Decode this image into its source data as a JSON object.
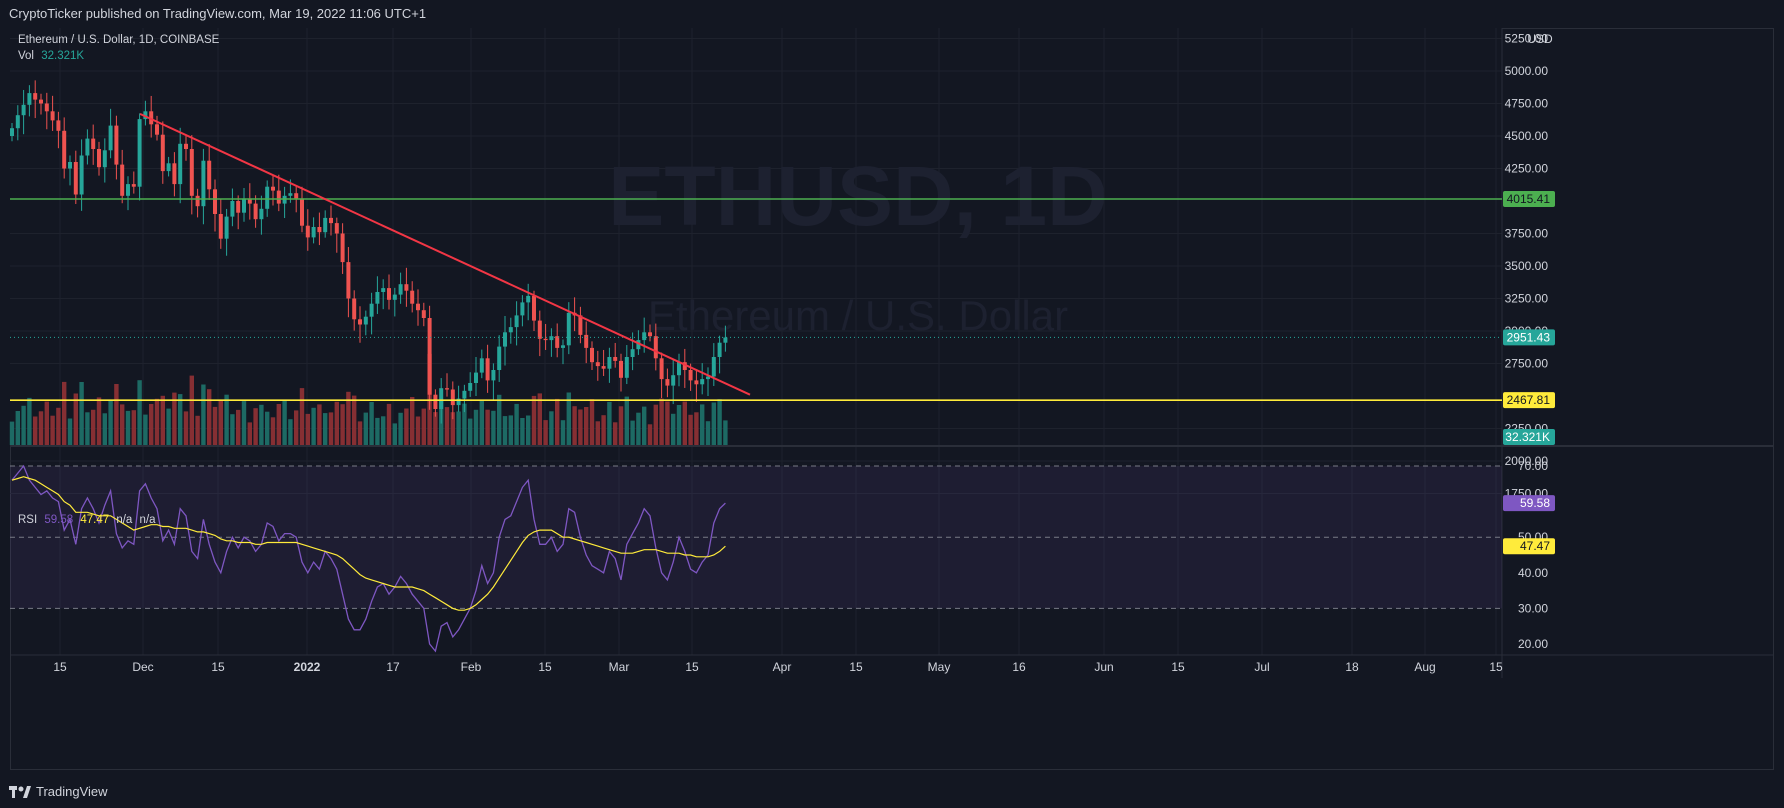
{
  "header": {
    "publish_line": "CryptoTicker published on TradingView.com, Mar 19, 2022 11:06 UTC+1"
  },
  "footer": {
    "logo_text": "TradingView"
  },
  "legend": {
    "symbol_line": "Ethereum / U.S. Dollar, 1D, COINBASE",
    "vol_label": "Vol",
    "vol_value": "32.321K",
    "rsi_label": "RSI",
    "rsi_value": "59.58",
    "rsi_ma_value": "47.47",
    "na1": "n/a",
    "na2": "n/a"
  },
  "watermark": {
    "ticker": "ETHUSD, 1D",
    "name": "Ethereum / U.S. Dollar"
  },
  "currency": "USD",
  "colors": {
    "up": "#26a69a",
    "down": "#ef5350",
    "support_line": "#ffeb3b",
    "resistance_line": "#4caf50",
    "trend_line": "#f23645",
    "rsi_line": "#7e57c2",
    "rsi_ma": "#ffeb3b",
    "background": "#131722"
  },
  "chart_data": [
    {
      "type": "candlestick",
      "title": "Ethereum / U.S. Dollar, 1D, COINBASE",
      "y_axis_ticks": [
        5250,
        5000,
        4750,
        4500,
        4250,
        3750,
        3500,
        3250,
        3000,
        2750,
        2250,
        2000,
        1750
      ],
      "x_axis_ticks": [
        "15",
        "Dec",
        "15",
        "2022",
        "17",
        "Feb",
        "15",
        "Mar",
        "15",
        "Apr",
        "15",
        "May",
        "16",
        "Jun",
        "15",
        "Jul",
        "18",
        "Aug",
        "15"
      ],
      "horizontal_lines": [
        {
          "label": "4015.41",
          "value": 4015.41,
          "color": "#4caf50"
        },
        {
          "label": "2467.81",
          "value": 2467.81,
          "color": "#ffeb3b"
        }
      ],
      "trend_line": {
        "from": {
          "date": "2021-12-01",
          "value": 4670
        },
        "to": {
          "date": "2022-03-28",
          "value": 2510
        }
      },
      "current_price": "2951.43",
      "current_volume": "32.321K",
      "close_series": [
        4560,
        4660,
        4740,
        4830,
        4780,
        4750,
        4690,
        4620,
        4540,
        4250,
        4300,
        4050,
        4350,
        4480,
        4400,
        4260,
        4390,
        4580,
        4280,
        4040,
        4130,
        4110,
        4630,
        4690,
        4590,
        4510,
        4230,
        4290,
        4130,
        4440,
        4400,
        4040,
        3960,
        4310,
        4090,
        3900,
        3710,
        3880,
        4000,
        3910,
        4020,
        3980,
        3860,
        3940,
        4110,
        4080,
        3980,
        4040,
        4060,
        4020,
        3810,
        3720,
        3800,
        3760,
        3870,
        3830,
        3750,
        3530,
        3250,
        3090,
        3050,
        3110,
        3210,
        3300,
        3330,
        3240,
        3280,
        3360,
        3310,
        3210,
        3160,
        3100,
        2510,
        2400,
        2560,
        2550,
        2430,
        2480,
        2540,
        2600,
        2680,
        2790,
        2620,
        2700,
        2880,
        2990,
        3030,
        3120,
        3220,
        3270,
        3080,
        2940,
        2930,
        2960,
        2870,
        2890,
        3140,
        3120,
        2970,
        2870,
        2760,
        2730,
        2710,
        2800,
        2770,
        2640,
        2800,
        2860,
        2930,
        2990,
        2960,
        2790,
        2630,
        2580,
        2660,
        2760,
        2700,
        2620,
        2590,
        2630,
        2650,
        2800,
        2910,
        2950
      ]
    },
    {
      "type": "bar",
      "title": "Vol",
      "series": [
        {
          "name": "Vol",
          "last_value": "32.321K"
        }
      ]
    },
    {
      "type": "line",
      "title": "RSI",
      "y_axis_ticks": [
        70,
        50,
        40,
        30,
        20
      ],
      "bands": [
        30,
        70
      ],
      "series": [
        {
          "name": "RSI",
          "last_value": 59.58,
          "values": [
            66,
            68,
            70,
            66,
            64,
            62,
            63,
            61,
            60,
            52,
            55,
            48,
            58,
            61,
            58,
            54,
            59,
            63,
            51,
            47,
            49,
            48,
            63,
            65,
            61,
            58,
            49,
            52,
            48,
            58,
            56,
            46,
            44,
            55,
            48,
            43,
            40,
            46,
            50,
            47,
            50,
            49,
            46,
            48,
            54,
            53,
            49,
            51,
            51,
            50,
            43,
            40,
            43,
            41,
            46,
            44,
            41,
            34,
            27,
            24,
            24,
            27,
            32,
            36,
            37,
            34,
            36,
            39,
            37,
            34,
            32,
            30,
            20,
            18,
            25,
            26,
            22,
            24,
            27,
            30,
            35,
            42,
            37,
            40,
            50,
            55,
            56,
            60,
            64,
            66,
            55,
            48,
            48,
            50,
            46,
            48,
            58,
            57,
            50,
            45,
            42,
            41,
            40,
            46,
            44,
            38,
            48,
            51,
            54,
            58,
            56,
            47,
            40,
            38,
            43,
            50,
            46,
            41,
            40,
            43,
            45,
            54,
            58,
            59.58
          ]
        },
        {
          "name": "RSI-based MA",
          "last_value": 47.47,
          "values": [
            66,
            66.5,
            67,
            66.5,
            66,
            65,
            64,
            63,
            62,
            60,
            59,
            57,
            57,
            57,
            56.5,
            56,
            56,
            56,
            55,
            54,
            53,
            52,
            52.5,
            53,
            53.5,
            53.5,
            53,
            53,
            52.5,
            52.5,
            52.5,
            52,
            51.5,
            51.5,
            51,
            50.5,
            49.5,
            49,
            49,
            48.5,
            48.5,
            48.5,
            48,
            48,
            48.5,
            48.5,
            48.5,
            48.5,
            48.5,
            48.5,
            48,
            47.5,
            47,
            46.5,
            46,
            45.5,
            45,
            44,
            42.5,
            41,
            39.5,
            38.5,
            38,
            37.5,
            37,
            36.5,
            36,
            36,
            36,
            36,
            35.5,
            35,
            34,
            33,
            32,
            31,
            30,
            29.5,
            29.5,
            30,
            31,
            32.5,
            34,
            36,
            38.5,
            41,
            43.5,
            46,
            48.5,
            50.5,
            51.5,
            52,
            52,
            52,
            51,
            50,
            50,
            49.5,
            49,
            48.5,
            48,
            47.5,
            47,
            46.5,
            46,
            45.5,
            45.5,
            45.5,
            46,
            46.5,
            46.5,
            46.5,
            46,
            45.5,
            45.5,
            45.5,
            45,
            45,
            44.5,
            44.5,
            44.5,
            45,
            46,
            47.47
          ]
        }
      ]
    }
  ]
}
